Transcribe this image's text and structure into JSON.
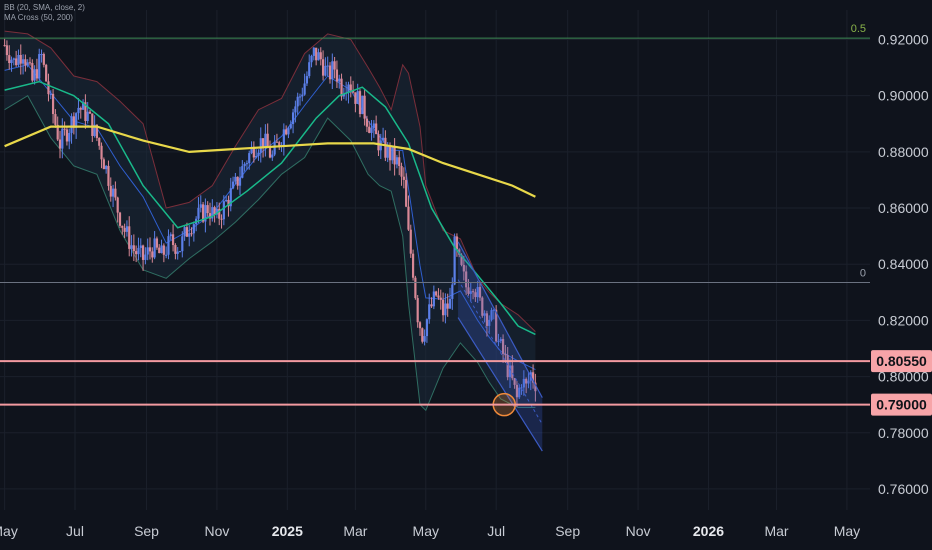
{
  "indicators": {
    "bb_label": "BB (20, SMA, close, 2)",
    "ma_label": "MA Cross (50, 200)"
  },
  "colors": {
    "background": "#0f131c",
    "grid": "#1b202b",
    "candle_up": "#5b7fe8",
    "candle_down": "#d98896",
    "bb_upper": "#7a2e3a",
    "bb_lower": "#2f6e62",
    "bb_basis": "#2f5fd0",
    "ma50": "#19b98a",
    "ma200": "#e8d84a",
    "fib_0_5": "#3e8a55",
    "fib_0": "#6b7280",
    "level_line": "#f39aa0",
    "level_tag": "#f7a4a8",
    "channel": "#3b5bc4",
    "circle": "#f08a3a"
  },
  "chart_data": {
    "type": "candlestick",
    "symbol_scale": "price",
    "y_range": [
      0.7525,
      0.9305
    ],
    "y_ticks": [
      "0.92000",
      "0.90000",
      "0.88000",
      "0.86000",
      "0.84000",
      "0.82000",
      "0.80000",
      "0.78000",
      "0.76000"
    ],
    "y_tick_values": [
      0.92,
      0.9,
      0.88,
      0.86,
      0.84,
      0.82,
      0.8,
      0.78,
      0.76
    ],
    "x_ticks": [
      {
        "label": "May",
        "t": 0,
        "bold": false
      },
      {
        "label": "Jul",
        "t": 61,
        "bold": false
      },
      {
        "label": "Sep",
        "t": 123,
        "bold": false
      },
      {
        "label": "Nov",
        "t": 184,
        "bold": false
      },
      {
        "label": "2025",
        "t": 245,
        "bold": true
      },
      {
        "label": "Mar",
        "t": 304,
        "bold": false
      },
      {
        "label": "May",
        "t": 365,
        "bold": false
      },
      {
        "label": "Jul",
        "t": 426,
        "bold": false
      },
      {
        "label": "Sep",
        "t": 488,
        "bold": false
      },
      {
        "label": "Nov",
        "t": 549,
        "bold": false
      },
      {
        "label": "2026",
        "t": 610,
        "bold": true
      },
      {
        "label": "Mar",
        "t": 669,
        "bold": false
      },
      {
        "label": "May",
        "t": 730,
        "bold": false
      }
    ],
    "x_range_days": [
      -4,
      750
    ],
    "close_path": [
      [
        0,
        0.918
      ],
      [
        8,
        0.912
      ],
      [
        16,
        0.916
      ],
      [
        24,
        0.905
      ],
      [
        32,
        0.914
      ],
      [
        40,
        0.897
      ],
      [
        48,
        0.883
      ],
      [
        56,
        0.889
      ],
      [
        64,
        0.896
      ],
      [
        72,
        0.893
      ],
      [
        80,
        0.885
      ],
      [
        88,
        0.874
      ],
      [
        96,
        0.862
      ],
      [
        104,
        0.852
      ],
      [
        112,
        0.845
      ],
      [
        120,
        0.842
      ],
      [
        128,
        0.846
      ],
      [
        136,
        0.843
      ],
      [
        144,
        0.848
      ],
      [
        152,
        0.846
      ],
      [
        160,
        0.854
      ],
      [
        168,
        0.857
      ],
      [
        176,
        0.86
      ],
      [
        184,
        0.856
      ],
      [
        192,
        0.862
      ],
      [
        200,
        0.868
      ],
      [
        208,
        0.876
      ],
      [
        216,
        0.882
      ],
      [
        224,
        0.884
      ],
      [
        232,
        0.878
      ],
      [
        240,
        0.886
      ],
      [
        248,
        0.893
      ],
      [
        256,
        0.9
      ],
      [
        262,
        0.907
      ],
      [
        268,
        0.915
      ],
      [
        274,
        0.913
      ],
      [
        280,
        0.907
      ],
      [
        286,
        0.91
      ],
      [
        292,
        0.903
      ],
      [
        298,
        0.906
      ],
      [
        304,
        0.9
      ],
      [
        310,
        0.896
      ],
      [
        318,
        0.888
      ],
      [
        326,
        0.882
      ],
      [
        334,
        0.879
      ],
      [
        340,
        0.876
      ],
      [
        346,
        0.868
      ],
      [
        350,
        0.85
      ],
      [
        354,
        0.838
      ],
      [
        358,
        0.822
      ],
      [
        362,
        0.815
      ],
      [
        368,
        0.823
      ],
      [
        374,
        0.829
      ],
      [
        380,
        0.823
      ],
      [
        386,
        0.826
      ],
      [
        390,
        0.846
      ],
      [
        394,
        0.84
      ],
      [
        400,
        0.832
      ],
      [
        406,
        0.834
      ],
      [
        412,
        0.826
      ],
      [
        418,
        0.822
      ],
      [
        424,
        0.82
      ],
      [
        428,
        0.812
      ],
      [
        432,
        0.808
      ],
      [
        436,
        0.803
      ],
      [
        440,
        0.798
      ],
      [
        444,
        0.792
      ],
      [
        448,
        0.799
      ],
      [
        452,
        0.796
      ],
      [
        456,
        0.801
      ],
      [
        460,
        0.798
      ]
    ],
    "ma50_path": [
      [
        0,
        0.902
      ],
      [
        30,
        0.905
      ],
      [
        60,
        0.9
      ],
      [
        90,
        0.89
      ],
      [
        120,
        0.868
      ],
      [
        150,
        0.853
      ],
      [
        180,
        0.857
      ],
      [
        210,
        0.866
      ],
      [
        240,
        0.876
      ],
      [
        270,
        0.892
      ],
      [
        290,
        0.9
      ],
      [
        310,
        0.903
      ],
      [
        330,
        0.896
      ],
      [
        350,
        0.883
      ],
      [
        370,
        0.86
      ],
      [
        390,
        0.846
      ],
      [
        410,
        0.836
      ],
      [
        430,
        0.826
      ],
      [
        445,
        0.818
      ],
      [
        460,
        0.815
      ]
    ],
    "ma200_path": [
      [
        0,
        0.882
      ],
      [
        40,
        0.889
      ],
      [
        80,
        0.889
      ],
      [
        120,
        0.884
      ],
      [
        160,
        0.88
      ],
      [
        200,
        0.881
      ],
      [
        240,
        0.882
      ],
      [
        280,
        0.883
      ],
      [
        320,
        0.883
      ],
      [
        350,
        0.881
      ],
      [
        380,
        0.876
      ],
      [
        410,
        0.872
      ],
      [
        440,
        0.868
      ],
      [
        460,
        0.864
      ]
    ],
    "bb_upper_path": [
      [
        0,
        0.923
      ],
      [
        20,
        0.922
      ],
      [
        40,
        0.917
      ],
      [
        60,
        0.907
      ],
      [
        80,
        0.905
      ],
      [
        100,
        0.898
      ],
      [
        120,
        0.89
      ],
      [
        140,
        0.86
      ],
      [
        160,
        0.862
      ],
      [
        180,
        0.868
      ],
      [
        200,
        0.882
      ],
      [
        220,
        0.895
      ],
      [
        240,
        0.899
      ],
      [
        260,
        0.915
      ],
      [
        280,
        0.922
      ],
      [
        300,
        0.92
      ],
      [
        315,
        0.91
      ],
      [
        325,
        0.903
      ],
      [
        335,
        0.895
      ],
      [
        345,
        0.911
      ],
      [
        350,
        0.908
      ],
      [
        360,
        0.889
      ],
      [
        365,
        0.868
      ],
      [
        380,
        0.852
      ],
      [
        395,
        0.849
      ],
      [
        410,
        0.835
      ],
      [
        420,
        0.83
      ],
      [
        430,
        0.826
      ],
      [
        445,
        0.822
      ],
      [
        460,
        0.816
      ]
    ],
    "bb_lower_path": [
      [
        0,
        0.895
      ],
      [
        20,
        0.9
      ],
      [
        40,
        0.885
      ],
      [
        60,
        0.875
      ],
      [
        80,
        0.872
      ],
      [
        100,
        0.852
      ],
      [
        120,
        0.838
      ],
      [
        140,
        0.835
      ],
      [
        160,
        0.842
      ],
      [
        180,
        0.848
      ],
      [
        200,
        0.855
      ],
      [
        220,
        0.863
      ],
      [
        240,
        0.872
      ],
      [
        260,
        0.878
      ],
      [
        280,
        0.892
      ],
      [
        300,
        0.884
      ],
      [
        315,
        0.872
      ],
      [
        325,
        0.868
      ],
      [
        335,
        0.866
      ],
      [
        345,
        0.85
      ],
      [
        350,
        0.826
      ],
      [
        360,
        0.79
      ],
      [
        365,
        0.788
      ],
      [
        380,
        0.803
      ],
      [
        395,
        0.812
      ],
      [
        410,
        0.805
      ],
      [
        420,
        0.798
      ],
      [
        430,
        0.792
      ],
      [
        445,
        0.789
      ],
      [
        460,
        0.789
      ]
    ],
    "horizontal_levels": [
      {
        "name": "fib-0.5",
        "label": "0.5",
        "value": 0.9205,
        "style": "fib"
      },
      {
        "name": "fib-0",
        "label": "0",
        "value": 0.8335,
        "style": "fib"
      },
      {
        "name": "resistance",
        "label": "0.80550",
        "value": 0.8055,
        "style": "tag"
      },
      {
        "name": "support",
        "label": "0.79000",
        "value": 0.79,
        "style": "tag"
      }
    ],
    "channel": {
      "upper": [
        [
          393,
          0.848
        ],
        [
          466,
          0.7925
        ]
      ],
      "lower": [
        [
          393,
          0.821
        ],
        [
          466,
          0.7735
        ]
      ]
    },
    "highlight_circle": {
      "t": 433,
      "value": 0.79
    }
  }
}
